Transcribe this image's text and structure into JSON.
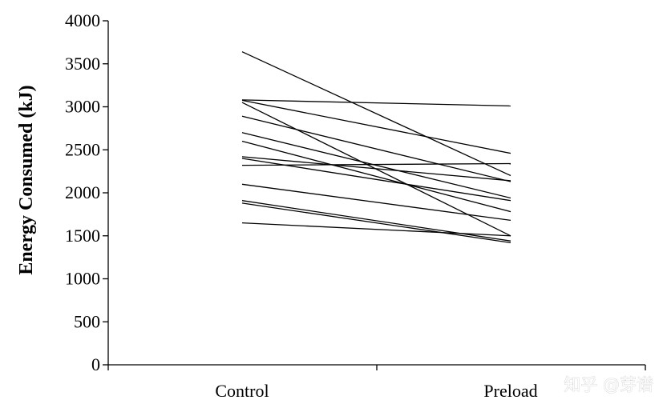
{
  "chart_data": {
    "type": "line",
    "title": "",
    "xlabel": "",
    "ylabel": "Energy Consumed (kJ)",
    "categories": [
      "Control",
      "Preload"
    ],
    "ylim": [
      0,
      4000
    ],
    "yticks": [
      0,
      500,
      1000,
      1500,
      2000,
      2500,
      3000,
      3500,
      4000
    ],
    "grid": false,
    "legend": "none",
    "line_color": "#000000",
    "series": [
      {
        "values": [
          3640,
          2200
        ]
      },
      {
        "values": [
          3080,
          3010
        ]
      },
      {
        "values": [
          3075,
          2460
        ]
      },
      {
        "values": [
          3050,
          1500
        ]
      },
      {
        "values": [
          2890,
          2130
        ]
      },
      {
        "values": [
          2700,
          1940
        ]
      },
      {
        "values": [
          2600,
          1780
        ]
      },
      {
        "values": [
          2420,
          2140
        ]
      },
      {
        "values": [
          2400,
          1910
        ]
      },
      {
        "values": [
          2320,
          2340
        ]
      },
      {
        "values": [
          2100,
          1680
        ]
      },
      {
        "values": [
          1910,
          1440
        ]
      },
      {
        "values": [
          1880,
          1420
        ]
      },
      {
        "values": [
          1650,
          1500
        ]
      }
    ]
  },
  "watermark": "知乎 @芽谱"
}
